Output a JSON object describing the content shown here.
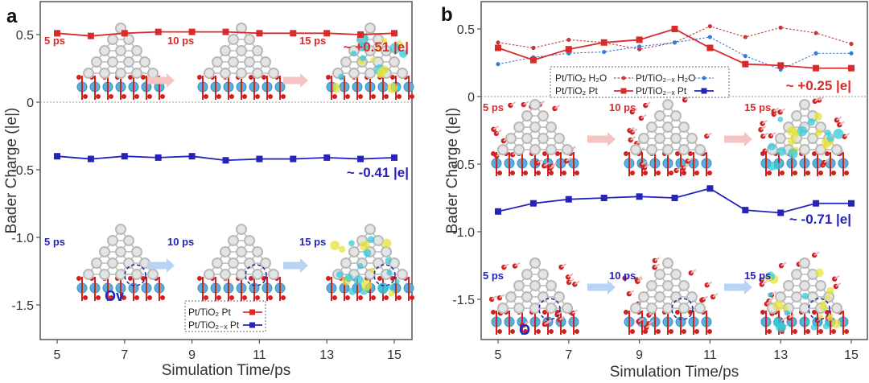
{
  "colors": {
    "pt_tio2": "#d92b2b",
    "pt_tio2x": "#2424b8",
    "h2o_tio2": "#c43a3a",
    "h2o_tio2x": "#3a7bd5",
    "arrow_red": "#f6c3c3",
    "arrow_blue": "#b8d4f4",
    "atom_pt": "#b9b9b9",
    "atom_o": "#d22020",
    "atom_ti": "#5aaed8",
    "iso_yellow": "#e8e23a",
    "iso_cyan": "#35c9d8"
  },
  "chart_data": [
    {
      "type": "line",
      "panel_label": "a",
      "title": "",
      "xlabel": "Simulation Time/ps",
      "ylabel": "Bader Charge (|e|)",
      "x": [
        5,
        6,
        7,
        8,
        9,
        10,
        11,
        12,
        13,
        14,
        15
      ],
      "xticks": [
        "5",
        "7",
        "9",
        "11",
        "13",
        "15"
      ],
      "xtick_values": [
        5,
        7,
        9,
        11,
        13,
        15
      ],
      "yticks": [
        "0.5",
        "0",
        "-0.5",
        "-1.0",
        "-1.5"
      ],
      "ytick_values": [
        0.5,
        0,
        -0.5,
        -1.0,
        -1.5
      ],
      "xlim": [
        4.5,
        15.5
      ],
      "ylim": [
        -1.75,
        0.74
      ],
      "reference_line_y": 0,
      "grid": false,
      "series": [
        {
          "name": "Pt/TiO₂ Pt",
          "style": "solid",
          "marker": "square",
          "color_key": "pt_tio2",
          "values": [
            0.51,
            0.49,
            0.51,
            0.52,
            0.52,
            0.52,
            0.51,
            0.51,
            0.51,
            0.5,
            0.51
          ]
        },
        {
          "name": "Pt/TiO₂₋ₓ Pt",
          "style": "solid",
          "marker": "square",
          "color_key": "pt_tio2x",
          "values": [
            -0.4,
            -0.42,
            -0.4,
            -0.41,
            -0.4,
            -0.43,
            -0.42,
            -0.42,
            -0.41,
            -0.42,
            -0.41
          ]
        }
      ],
      "legend": {
        "placement": "bottom-center",
        "entries": [
          {
            "label": "Pt/TiO₂  Pt",
            "series": 0
          },
          {
            "label": "Pt/TiO₂₋ₓ Pt",
            "series": 1
          }
        ]
      },
      "annotations": [
        {
          "text": "~ +0.51 |e|",
          "color_key": "pt_tio2",
          "position": "right, below red line"
        },
        {
          "text": "~ -0.41 |e|",
          "color_key": "pt_tio2x",
          "position": "right, below blue line"
        }
      ],
      "snapshots": [
        {
          "row": "top",
          "color_key": "pt_tio2",
          "labels": [
            "5 ps",
            "10 ps",
            "15 ps"
          ]
        },
        {
          "row": "bottom",
          "color_key": "pt_tio2x",
          "labels": [
            "5 ps",
            "10 ps",
            "15 ps"
          ],
          "vacancy_label": "Ov"
        }
      ]
    },
    {
      "type": "line",
      "panel_label": "b",
      "title": "",
      "xlabel": "Simulation Time/ps",
      "ylabel": "Bader Charge (|e|)",
      "x": [
        5,
        6,
        7,
        8,
        9,
        10,
        11,
        12,
        13,
        14,
        15
      ],
      "xticks": [
        "5",
        "7",
        "9",
        "11",
        "13",
        "15"
      ],
      "xtick_values": [
        5,
        7,
        9,
        11,
        13,
        15
      ],
      "yticks": [
        "0.5",
        "0",
        "-0.5",
        "-1.0",
        "-1.5"
      ],
      "ytick_values": [
        0.5,
        0,
        -0.5,
        -1.0,
        -1.5
      ],
      "xlim": [
        4.55,
        15.45
      ],
      "ylim": [
        -1.79,
        0.7
      ],
      "reference_line_y": 0,
      "grid": false,
      "series": [
        {
          "name": "Pt/TiO₂ H₂O",
          "style": "dotted",
          "marker": "dot",
          "color_key": "h2o_tio2",
          "values": [
            0.4,
            0.36,
            0.42,
            0.4,
            0.35,
            0.4,
            0.52,
            0.44,
            0.51,
            0.47,
            0.39
          ]
        },
        {
          "name": "Pt/TiO₂₋ₓ H₂O",
          "style": "dotted",
          "marker": "dot",
          "color_key": "h2o_tio2x",
          "values": [
            0.24,
            0.29,
            0.32,
            0.33,
            0.37,
            0.4,
            0.44,
            0.3,
            0.2,
            0.32,
            0.32
          ]
        },
        {
          "name": "Pt/TiO₂ Pt",
          "style": "solid",
          "marker": "square",
          "color_key": "pt_tio2",
          "values": [
            0.36,
            0.27,
            0.35,
            0.4,
            0.42,
            0.5,
            0.36,
            0.24,
            0.23,
            0.21,
            0.21
          ]
        },
        {
          "name": "Pt/TiO₂₋ₓ Pt",
          "style": "solid",
          "marker": "square",
          "color_key": "pt_tio2x",
          "values": [
            -0.85,
            -0.79,
            -0.76,
            -0.75,
            -0.74,
            -0.75,
            -0.68,
            -0.84,
            -0.86,
            -0.79,
            -0.79
          ]
        }
      ],
      "legend": {
        "placement": "top-center",
        "entries": [
          {
            "label": "Pt/TiO₂ H₂O",
            "series": 0
          },
          {
            "label": "Pt/TiO₂₋ₓ  H₂O",
            "series": 1
          },
          {
            "label": "Pt/TiO₂ Pt",
            "series": 2
          },
          {
            "label": "Pt/TiO₂₋ₓ  Pt",
            "series": 3
          }
        ]
      },
      "annotations": [
        {
          "text": "~ +0.25 |e|",
          "color_key": "pt_tio2",
          "position": "right, below red lines"
        },
        {
          "text": "~ -0.71 |e|",
          "color_key": "pt_tio2x",
          "position": "right, below blue line"
        }
      ],
      "snapshots": [
        {
          "row": "top",
          "color_key": "pt_tio2",
          "labels": [
            "5 ps",
            "10 ps",
            "15 ps"
          ]
        },
        {
          "row": "bottom",
          "color_key": "pt_tio2x",
          "labels": [
            "5 ps",
            "10 ps",
            "15 ps"
          ],
          "vacancy_label": "O"
        }
      ]
    }
  ]
}
